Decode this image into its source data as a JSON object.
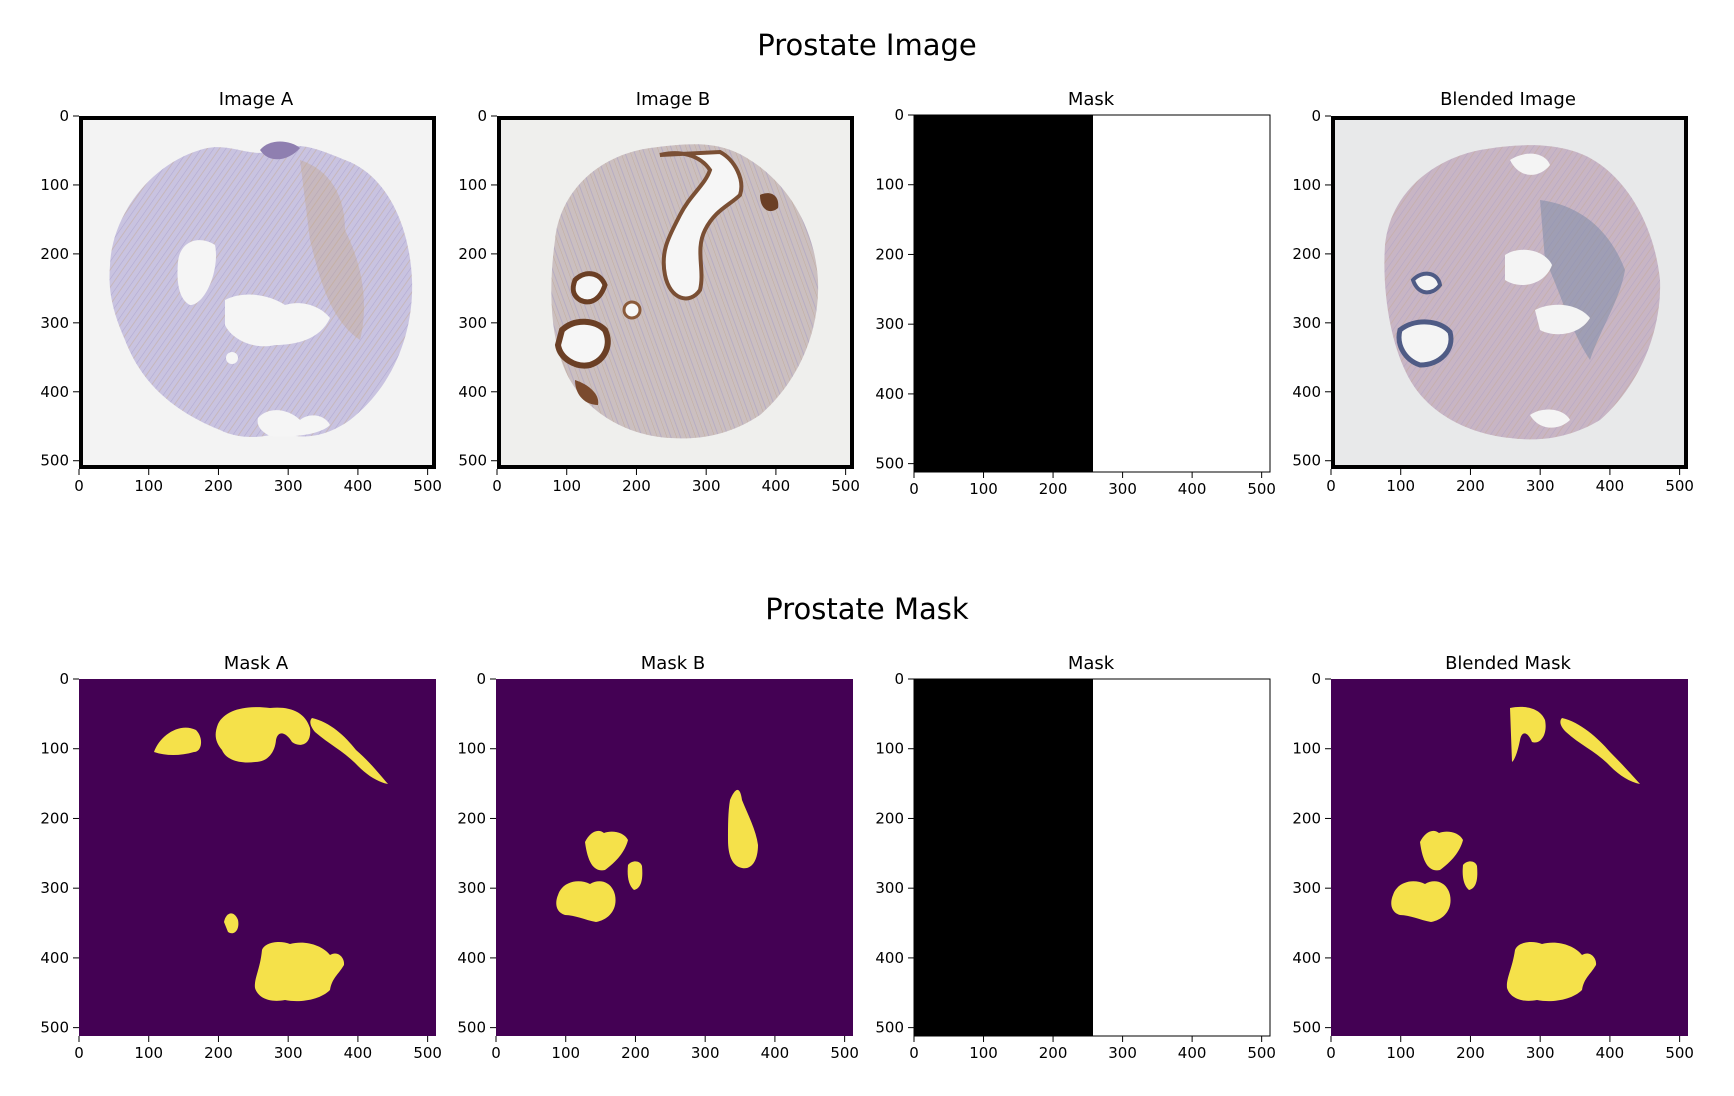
{
  "rows": [
    {
      "title": "Prostate Image",
      "panels": [
        {
          "title": "Image A",
          "kind": "tissue-a"
        },
        {
          "title": "Image B",
          "kind": "tissue-b"
        },
        {
          "title": "Mask",
          "kind": "split-mask"
        },
        {
          "title": "Blended Image",
          "kind": "tissue-blend"
        }
      ]
    },
    {
      "title": "Prostate Mask",
      "panels": [
        {
          "title": "Mask A",
          "kind": "seg-a"
        },
        {
          "title": "Mask B",
          "kind": "seg-b"
        },
        {
          "title": "Mask",
          "kind": "split-mask"
        },
        {
          "title": "Blended Mask",
          "kind": "seg-blend"
        }
      ]
    }
  ],
  "axes": {
    "x_ticks": [
      "0",
      "100",
      "200",
      "300",
      "400",
      "500"
    ],
    "y_ticks": [
      "0",
      "100",
      "200",
      "300",
      "400",
      "500"
    ],
    "extent": 512
  },
  "colors": {
    "seg_background": "#440154",
    "seg_foreground": "#f5e14a",
    "tissue_purple": "#b9b2d6",
    "tissue_brown": "#8a5a3a",
    "slide_background": "#f1f1f0"
  }
}
